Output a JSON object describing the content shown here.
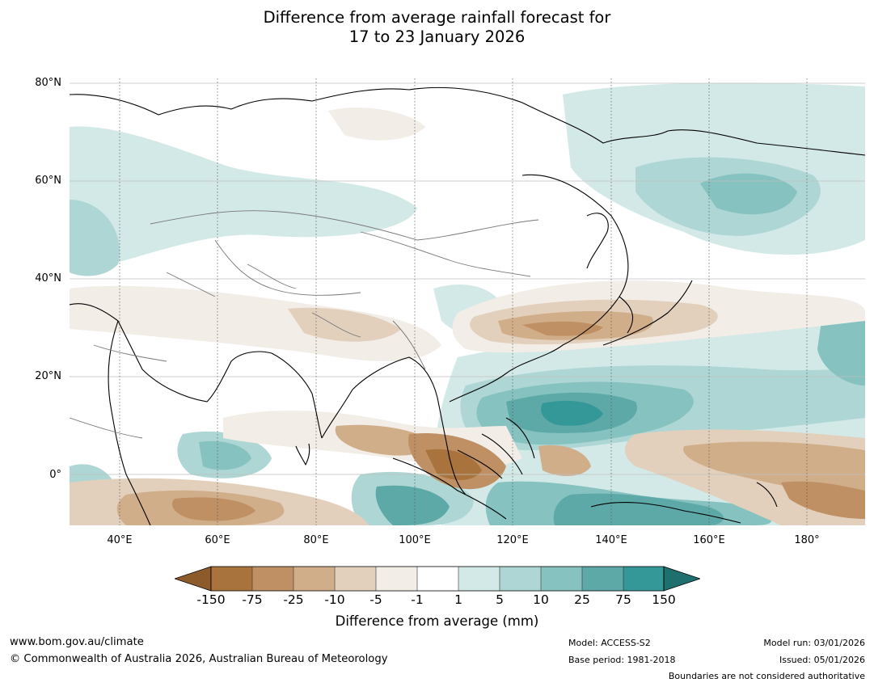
{
  "title": {
    "line1": "Difference from average rainfall forecast for",
    "line2": "17 to 23 January 2026"
  },
  "map": {
    "lat_labels": [
      "80°N",
      "60°N",
      "40°N",
      "20°N",
      "0°"
    ],
    "lon_labels": [
      "40°E",
      "60°E",
      "80°E",
      "100°E",
      "120°E",
      "140°E",
      "160°E",
      "180°"
    ],
    "extent": {
      "lon_min": 30,
      "lon_max": 191,
      "lat_min": -10,
      "lat_max": 80
    }
  },
  "colorbar": {
    "ticks": [
      "-150",
      "-75",
      "-25",
      "-10",
      "-5",
      "-1",
      "1",
      "5",
      "10",
      "25",
      "75",
      "150"
    ],
    "colors": {
      "below_-150": "#8c5a2b",
      "-150_-75": "#a8733c",
      "-75_-25": "#bf9063",
      "-25_-10": "#d1ae8a",
      "-10_-5": "#e3d0bc",
      "-5_-1": "#f2ede7",
      "-1_1": "#ffffff",
      "1_5": "#d3e9e7",
      "5_10": "#aed6d4",
      "10_25": "#85c2c0",
      "25_75": "#5ca9a8",
      "75_150": "#339897",
      "above_150": "#1f6f6e"
    },
    "label": "Difference from average (mm)"
  },
  "footer": {
    "website": "www.bom.gov.au/climate",
    "copyright": "© Commonwealth of Australia 2026, Australian Bureau of Meteorology",
    "model": "Model: ACCESS-S2",
    "base_period": "Base period: 1981-2018",
    "model_run": "Model run: 03/01/2026",
    "issued": "Issued: 05/01/2026",
    "disclaimer": "Boundaries are not considered authoritative"
  }
}
